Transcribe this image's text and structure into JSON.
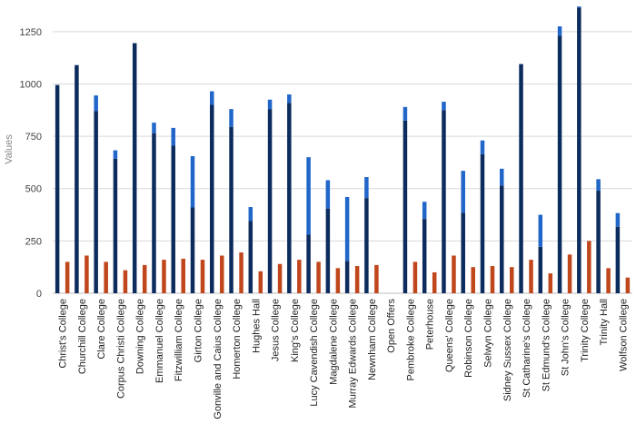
{
  "chart_data": {
    "type": "bar",
    "stacked_series": [
      0,
      1
    ],
    "xlabel": "",
    "ylabel": "Values",
    "ylim": [
      0,
      1375
    ],
    "yticks": [
      0,
      250,
      500,
      750,
      1000,
      1250
    ],
    "grid": true,
    "legend": "none",
    "categories": [
      "Christ's College",
      "Churchill College",
      "Clare College",
      "Corpus Christi College",
      "Downing College",
      "Emmanuel College",
      "Fitzwilliam College",
      "Girton College",
      "Gonville and Caius College",
      "Homerton College",
      "Hughes Hall",
      "Jesus College",
      "King's College",
      "Lucy Cavendish College",
      "Magdalene College",
      "Murray Edwards College",
      "Newnham College",
      "Open Offers",
      "Pembroke College",
      "Peterhouse",
      "Queens' College",
      "Robinson College",
      "Selwyn College",
      "Sidney Sussex College",
      "St Catharine's College",
      "St Edmund's College",
      "St John's College",
      "Trinity College",
      "Trinity Hall",
      "Wolfson College"
    ],
    "series": [
      {
        "color": "#0d2c5e",
        "values": [
          995,
          1090,
          870,
          643,
          1195,
          765,
          705,
          410,
          900,
          795,
          345,
          880,
          910,
          280,
          405,
          155,
          455,
          0,
          825,
          355,
          875,
          385,
          665,
          515,
          1095,
          222,
          1230,
          1365,
          490,
          318
        ]
      },
      {
        "color": "#2166c9",
        "values": [
          0,
          0,
          75,
          40,
          0,
          50,
          85,
          245,
          65,
          85,
          67,
          45,
          40,
          370,
          135,
          305,
          100,
          0,
          65,
          82,
          40,
          200,
          65,
          80,
          0,
          153,
          45,
          5,
          55,
          65
        ]
      },
      {
        "color": "#c0461b",
        "values": [
          150,
          180,
          150,
          110,
          135,
          160,
          165,
          160,
          180,
          195,
          105,
          140,
          160,
          150,
          120,
          130,
          135,
          0,
          150,
          100,
          180,
          125,
          130,
          125,
          160,
          95,
          185,
          250,
          120,
          75
        ]
      }
    ]
  }
}
